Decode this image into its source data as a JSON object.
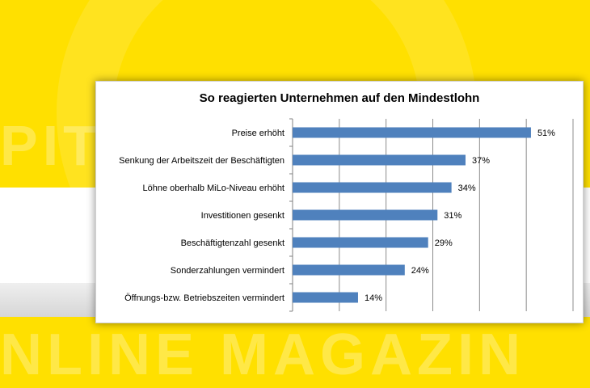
{
  "background": {
    "watermark_top": "PIT",
    "watermark_bottom": "NLINE MAGAZIN",
    "accent_color": "#ffe000"
  },
  "chart_data": {
    "type": "bar",
    "orientation": "horizontal",
    "title": "So reagierten Unternehmen auf den Mindestlohn",
    "categories": [
      "Preise erhöht",
      "Senkung der Arbeitszeit der Beschäftigten",
      "Löhne oberhalb MiLo-Niveau erhöht",
      "Investitionen gesenkt",
      "Beschäftigtenzahl gesenkt",
      "Sonderzahlungen vermindert",
      "Öffnungs-bzw. Betriebszeiten vermindert"
    ],
    "values": [
      51,
      37,
      34,
      31,
      29,
      24,
      14
    ],
    "value_labels": [
      "51%",
      "37%",
      "34%",
      "31%",
      "29%",
      "24%",
      "14%"
    ],
    "xlim": [
      0,
      60
    ],
    "bar_color": "#4f81bd",
    "grid": true,
    "legend": "none"
  }
}
